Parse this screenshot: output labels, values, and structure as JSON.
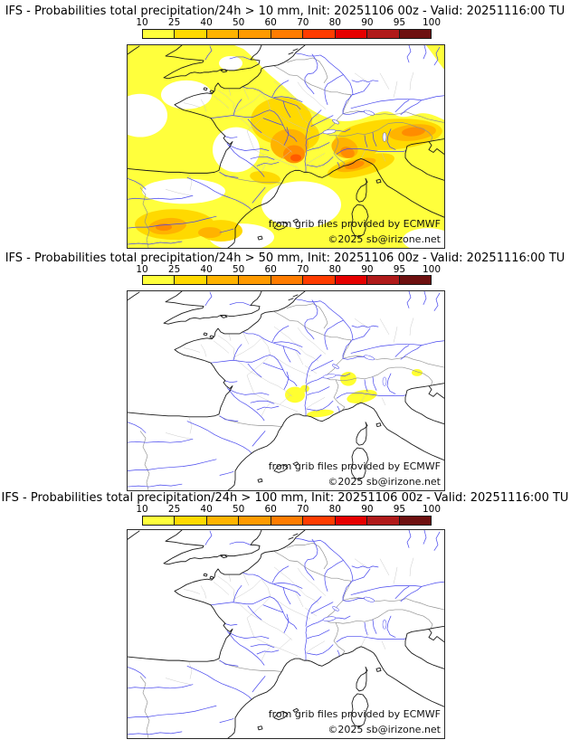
{
  "panels": [
    {
      "title": "IFS - Probabilities total precipitation/24h > 10 mm, Init: 20251106 00z - Valid: 20251116:00 TU",
      "model": "IFS",
      "variable": "total precipitation/24h",
      "threshold": "10 mm",
      "init": "20251106 00z",
      "valid": "20251116:00 TU",
      "has_shading": true,
      "approx_max_percent_band": "60-70"
    },
    {
      "title": "IFS - Probabilities total precipitation/24h > 50 mm, Init: 20251106 00z - Valid: 20251116:00 TU",
      "model": "IFS",
      "variable": "total precipitation/24h",
      "threshold": "50 mm",
      "init": "20251106 00z",
      "valid": "20251116:00 TU",
      "has_shading": true,
      "approx_max_percent_band": "10-25"
    },
    {
      "title": "IFS - Probabilities total precipitation/24h > 100 mm, Init: 20251106 00z - Valid: 20251116:00 TU",
      "model": "IFS",
      "variable": "total precipitation/24h",
      "threshold": "100 mm",
      "init": "20251106 00z",
      "valid": "20251116:00 TU",
      "has_shading": false,
      "approx_max_percent_band": "0"
    }
  ],
  "colorbar": {
    "ticks": [
      "10",
      "25",
      "40",
      "50",
      "60",
      "70",
      "80",
      "90",
      "95",
      "100"
    ],
    "colors": [
      "#ffff3c",
      "#ffd900",
      "#ffb300",
      "#ff9a00",
      "#ff7c00",
      "#ff3c00",
      "#e60000",
      "#b01a1a",
      "#6e1010"
    ],
    "unit": "%"
  },
  "attribution": {
    "source": "from grib files provided by ECMWF",
    "copyright": "©2025 sb@irizone.net"
  },
  "map_style": {
    "coast_color": "#1a1a1a",
    "river_color": "#4646ee",
    "admin_color": "#c4c4c4",
    "country_border_color": "#8f8f8f",
    "background": "#ffffff"
  }
}
